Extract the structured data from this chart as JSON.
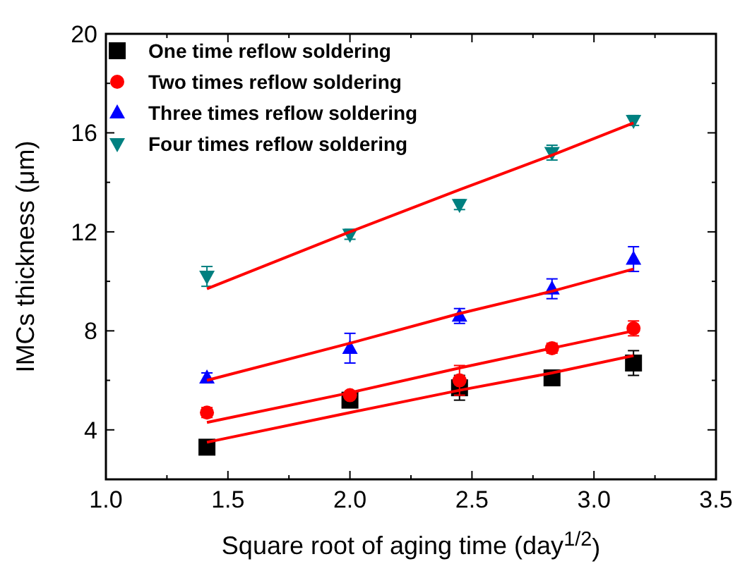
{
  "chart_data": {
    "type": "scatter",
    "xlabel": "Square root of aging time (day$^{1/2}$)",
    "ylabel": "IMCs thickness (μm)",
    "xlim": [
      1.0,
      3.5
    ],
    "xticks": [
      {
        "value": 1.0,
        "label": "1.0"
      },
      {
        "value": 1.25,
        "label": null
      },
      {
        "value": 1.5,
        "label": "1.5"
      },
      {
        "value": 1.75,
        "label": null
      },
      {
        "value": 2.0,
        "label": "2.0"
      },
      {
        "value": 2.25,
        "label": null
      },
      {
        "value": 2.5,
        "label": "2.5"
      },
      {
        "value": 2.75,
        "label": null
      },
      {
        "value": 3.0,
        "label": "3.0"
      },
      {
        "value": 3.25,
        "label": null
      },
      {
        "value": 3.5,
        "label": "3.5"
      }
    ],
    "ylim": [
      2,
      20
    ],
    "yticks": [
      4,
      {
        "value": 6,
        "label": null
      },
      8,
      {
        "value": 10,
        "label": null
      },
      12,
      {
        "value": 14,
        "label": null
      },
      16,
      {
        "value": 18,
        "label": null
      },
      20
    ],
    "x": [
      1.414,
      2.0,
      2.449,
      2.828,
      3.162
    ],
    "grid": false,
    "legend": "top left",
    "series": [
      {
        "name": "One time reflow soldering",
        "color": "#000000",
        "marker": "square",
        "values": [
          3.3,
          5.2,
          5.7,
          6.1,
          6.7
        ],
        "errors": [
          0.1,
          0.1,
          0.5,
          0.1,
          0.5
        ]
      },
      {
        "name": "Two times reflow soldering",
        "color": "#ff0000",
        "marker": "circle",
        "values": [
          4.7,
          5.4,
          6.0,
          7.3,
          8.1
        ],
        "errors": [
          0.2,
          0.1,
          0.6,
          0.2,
          0.3
        ]
      },
      {
        "name": "Three times reflow soldering",
        "color": "#0000ff",
        "marker": "triangle",
        "values": [
          6.1,
          7.3,
          8.6,
          9.7,
          10.9
        ],
        "errors": [
          0.2,
          0.6,
          0.3,
          0.4,
          0.5
        ]
      },
      {
        "name": "Four times reflow soldering",
        "color": "#008080",
        "marker": "triangle-down",
        "values": [
          10.2,
          11.9,
          13.1,
          15.2,
          16.5
        ],
        "errors": [
          0.4,
          0.2,
          0.2,
          0.3,
          0.2
        ]
      },
      {
        "type": "line",
        "color": "#ff0000",
        "values": [
          3.5,
          4.7,
          5.6,
          6.3,
          7.0
        ]
      },
      {
        "type": "line",
        "color": "#ff0000",
        "values": [
          4.3,
          5.5,
          6.5,
          7.3,
          8.0
        ]
      },
      {
        "type": "line",
        "color": "#ff0000",
        "values": [
          6.0,
          7.5,
          8.7,
          9.6,
          10.5
        ]
      },
      {
        "type": "line",
        "color": "#ff0000",
        "values": [
          9.7,
          12.0,
          13.7,
          15.1,
          16.4
        ]
      }
    ]
  }
}
